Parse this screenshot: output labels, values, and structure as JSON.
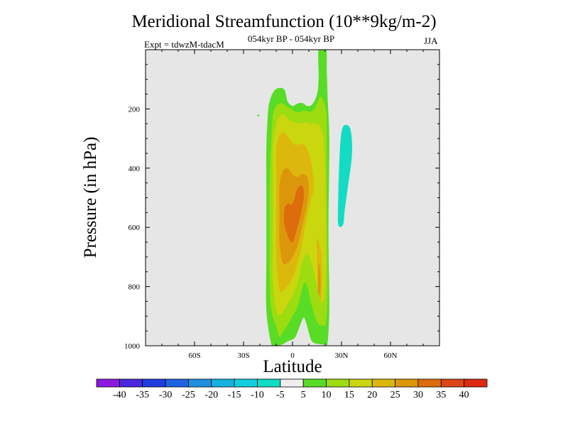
{
  "chart_data": {
    "type": "contour",
    "title": "Meridional Streamfunction (10**9kg/m-2)",
    "subtitle": "054kyr BP - 054kyr BP",
    "expt": "Expt = tdwzM-tdacM",
    "season": "JJA",
    "xlabel": "Latitude",
    "ylabel": "Pressure (in hPa)",
    "xlim": [
      -90,
      90
    ],
    "ylim": [
      1000,
      0
    ],
    "x_ticks": [
      {
        "value": -60,
        "label": "60S"
      },
      {
        "value": -30,
        "label": "30S"
      },
      {
        "value": 0,
        "label": "0"
      },
      {
        "value": 30,
        "label": "30N"
      },
      {
        "value": 60,
        "label": "60N"
      }
    ],
    "y_ticks": [
      {
        "value": 200,
        "label": "200"
      },
      {
        "value": 400,
        "label": "400"
      },
      {
        "value": 600,
        "label": "600"
      },
      {
        "value": 800,
        "label": "800"
      },
      {
        "value": 1000,
        "label": "1000"
      }
    ],
    "background_color": "#e6e6e6",
    "colorbar": {
      "labels": [
        "-40",
        "-35",
        "-30",
        "-25",
        "-20",
        "-15",
        "-10",
        "-5",
        "5",
        "10",
        "15",
        "20",
        "25",
        "30",
        "35",
        "40"
      ],
      "colors": [
        "#8c18e0",
        "#4a26dc",
        "#1f3ce0",
        "#1e64e0",
        "#1f8ee0",
        "#14b2e0",
        "#12cede",
        "#12dcc4",
        "#eeeeee",
        "#58dc26",
        "#9cdc10",
        "#cad60e",
        "#dcb80c",
        "#dc960c",
        "#dc6c0c",
        "#dc4616",
        "#dc2a12"
      ]
    },
    "contour_regions": [
      {
        "name": "positive-5-10",
        "level": 5,
        "color": "#58dc26",
        "points": [
          [
            -13,
            995
          ],
          [
            -11,
            1000
          ],
          [
            -9,
            1000
          ],
          [
            -6,
            995
          ],
          [
            -3,
            985
          ],
          [
            1,
            975
          ],
          [
            3,
            955
          ],
          [
            5,
            925
          ],
          [
            7,
            905
          ],
          [
            9,
            935
          ],
          [
            11,
            975
          ],
          [
            13,
            990
          ],
          [
            17,
            995
          ],
          [
            20,
            995
          ],
          [
            21.5,
            990
          ],
          [
            22.5,
            870
          ],
          [
            22,
            610
          ],
          [
            22.5,
            310
          ],
          [
            21.5,
            160
          ],
          [
            21,
            75
          ],
          [
            20.5,
            0
          ],
          [
            16,
            0
          ],
          [
            16,
            95
          ],
          [
            15,
            150
          ],
          [
            12,
            185
          ],
          [
            9,
            190
          ],
          [
            6,
            180
          ],
          [
            3,
            182
          ],
          [
            0,
            190
          ],
          [
            -3,
            175
          ],
          [
            -5,
            135
          ],
          [
            -9,
            130
          ],
          [
            -12,
            145
          ],
          [
            -14,
            175
          ],
          [
            -15,
            210
          ],
          [
            -16,
            330
          ],
          [
            -16,
            500
          ],
          [
            -16,
            700
          ],
          [
            -16,
            880
          ]
        ]
      },
      {
        "name": "positive-10-15",
        "level": 10,
        "color": "#9cdc10",
        "points": [
          [
            -10,
            935
          ],
          [
            -8,
            970
          ],
          [
            -6,
            955
          ],
          [
            -3,
            930
          ],
          [
            0,
            900
          ],
          [
            3,
            870
          ],
          [
            5,
            830
          ],
          [
            7,
            790
          ],
          [
            9,
            800
          ],
          [
            12,
            870
          ],
          [
            15,
            920
          ],
          [
            18,
            930
          ],
          [
            20.5,
            920
          ],
          [
            21.5,
            780
          ],
          [
            21,
            500
          ],
          [
            21,
            260
          ],
          [
            20,
            190
          ],
          [
            17,
            160
          ],
          [
            14,
            195
          ],
          [
            11,
            210
          ],
          [
            8,
            205
          ],
          [
            5,
            210
          ],
          [
            2,
            210
          ],
          [
            -1,
            200
          ],
          [
            -4,
            190
          ],
          [
            -7,
            180
          ],
          [
            -10,
            190
          ],
          [
            -12,
            220
          ],
          [
            -13,
            300
          ],
          [
            -14,
            450
          ],
          [
            -14,
            620
          ],
          [
            -14,
            780
          ],
          [
            -13,
            880
          ]
        ]
      },
      {
        "name": "positive-15-20",
        "level": 15,
        "color": "#cad60e",
        "points": [
          [
            -10,
            880
          ],
          [
            -7,
            895
          ],
          [
            -4,
            870
          ],
          [
            -1,
            840
          ],
          [
            2,
            810
          ],
          [
            4,
            770
          ],
          [
            6,
            720
          ],
          [
            9,
            690
          ],
          [
            12,
            730
          ],
          [
            15,
            800
          ],
          [
            18,
            855
          ],
          [
            20,
            800
          ],
          [
            20.5,
            600
          ],
          [
            20,
            400
          ],
          [
            19,
            300
          ],
          [
            17,
            260
          ],
          [
            14,
            250
          ],
          [
            11,
            250
          ],
          [
            8,
            245
          ],
          [
            5,
            250
          ],
          [
            2,
            245
          ],
          [
            -1,
            240
          ],
          [
            -5,
            220
          ],
          [
            -8,
            225
          ],
          [
            -10,
            250
          ],
          [
            -12,
            320
          ],
          [
            -12,
            470
          ],
          [
            -12,
            640
          ],
          [
            -12,
            780
          ]
        ]
      },
      {
        "name": "positive-20-25",
        "level": 20,
        "color": "#dcb80c",
        "points": [
          [
            -8,
            810
          ],
          [
            -5,
            810
          ],
          [
            -2,
            790
          ],
          [
            1,
            760
          ],
          [
            3,
            720
          ],
          [
            5,
            680
          ],
          [
            7,
            620
          ],
          [
            9,
            560
          ],
          [
            11,
            510
          ],
          [
            13,
            470
          ],
          [
            12,
            400
          ],
          [
            10,
            350
          ],
          [
            7,
            320
          ],
          [
            4,
            320
          ],
          [
            1,
            320
          ],
          [
            -2,
            300
          ],
          [
            -5,
            280
          ],
          [
            -8,
            290
          ],
          [
            -10,
            340
          ],
          [
            -10,
            450
          ],
          [
            -10,
            580
          ],
          [
            -10,
            700
          ]
        ]
      },
      {
        "name": "positive-20-25-south",
        "level": 20,
        "color": "#dcb80c",
        "points": [
          [
            15,
            640
          ],
          [
            17,
            670
          ],
          [
            18,
            730
          ],
          [
            18,
            820
          ],
          [
            17,
            850
          ],
          [
            16,
            800
          ],
          [
            15,
            720
          ]
        ]
      },
      {
        "name": "positive-25-30",
        "level": 25,
        "color": "#dc960c",
        "points": [
          [
            -6,
            720
          ],
          [
            -3,
            720
          ],
          [
            0,
            700
          ],
          [
            3,
            665
          ],
          [
            5,
            620
          ],
          [
            7,
            570
          ],
          [
            9,
            520
          ],
          [
            10,
            470
          ],
          [
            9,
            430
          ],
          [
            6,
            420
          ],
          [
            3,
            430
          ],
          [
            0,
            420
          ],
          [
            -3,
            400
          ],
          [
            -6,
            410
          ],
          [
            -8,
            460
          ],
          [
            -8,
            560
          ],
          [
            -8,
            650
          ]
        ]
      },
      {
        "name": "positive-25-30-south",
        "level": 25,
        "color": "#dc960c",
        "points": [
          [
            16,
            720
          ],
          [
            17,
            760
          ],
          [
            17,
            810
          ],
          [
            16,
            830
          ],
          [
            15.5,
            790
          ]
        ]
      },
      {
        "name": "positive-30-35",
        "level": 30,
        "color": "#dc6c0c",
        "points": [
          [
            -5,
            590
          ],
          [
            -2,
            640
          ],
          [
            0,
            650
          ],
          [
            2,
            620
          ],
          [
            4,
            580
          ],
          [
            6,
            530
          ],
          [
            7,
            490
          ],
          [
            6,
            460
          ],
          [
            3,
            470
          ],
          [
            0,
            520
          ],
          [
            -3,
            520
          ],
          [
            -5,
            540
          ]
        ]
      },
      {
        "name": "negative-5-10",
        "level": -5,
        "color": "#12dcc4",
        "points": [
          [
            28,
            590
          ],
          [
            31,
            590
          ],
          [
            32,
            540
          ],
          [
            34,
            460
          ],
          [
            36,
            380
          ],
          [
            36.5,
            320
          ],
          [
            35.5,
            270
          ],
          [
            33.5,
            255
          ],
          [
            31,
            260
          ],
          [
            29.5,
            300
          ],
          [
            28.5,
            400
          ],
          [
            28,
            500
          ]
        ]
      },
      {
        "name": "speck",
        "level": 5,
        "color": "#58dc26",
        "points": [
          [
            -21.5,
            220
          ],
          [
            -20.5,
            220
          ],
          [
            -20.5,
            225
          ],
          [
            -21.5,
            225
          ]
        ]
      }
    ]
  }
}
